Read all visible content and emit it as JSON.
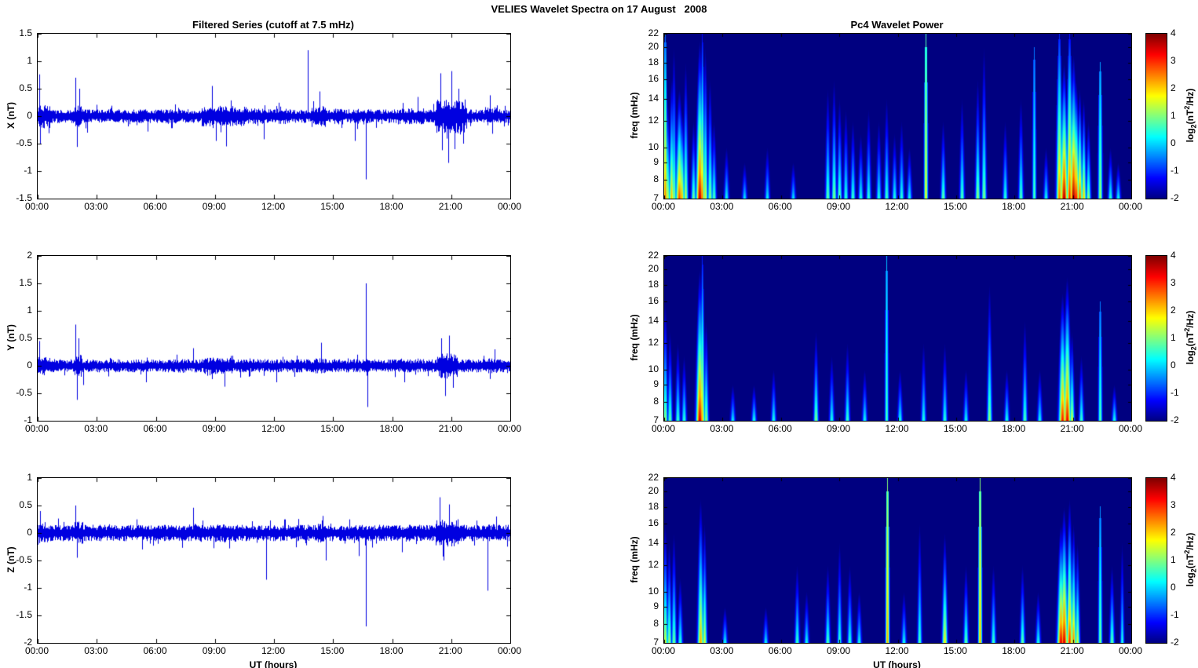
{
  "figure": {
    "title": "VELIES Wavelet Spectra on 17 August   2008"
  },
  "colors": {
    "line": "#0000e0",
    "frame": "#000000",
    "spectro_bg": "#000080",
    "text": "#000000"
  },
  "time_axis": {
    "tick_labels": [
      "00:00",
      "03:00",
      "06:00",
      "09:00",
      "12:00",
      "15:00",
      "18:00",
      "21:00",
      "00:00"
    ],
    "tick_hours": [
      0,
      3,
      6,
      9,
      12,
      15,
      18,
      21,
      24
    ],
    "xlim_hours": [
      0,
      24
    ]
  },
  "colorbar": {
    "clim": [
      -2,
      4
    ],
    "ticks": [
      4,
      3,
      2,
      1,
      0,
      -1,
      -2
    ],
    "tick_labels": [
      "4",
      "3",
      "2",
      "1",
      "0",
      "-1",
      "-2"
    ],
    "label_parts": {
      "p1": "log",
      "sub": "2",
      "p2": "(nT",
      "sup": "2",
      "p3": "/Hz)"
    }
  },
  "chart_data": [
    {
      "id": "x-filtered-series",
      "type": "line",
      "title": "Filtered Series (cutoff at 7.5 mHz)",
      "ylabel": "X (nT)",
      "ylim": [
        -1.5,
        1.5
      ],
      "yticks": [
        -1.5,
        -1,
        -0.5,
        0,
        0.5,
        1,
        1.5
      ],
      "ytick_labels": [
        "-1.5",
        "-1",
        "-0.5",
        "0",
        "0.5",
        "1",
        "1.5"
      ],
      "seed": 7,
      "noise_sigma": 0.05,
      "noise_bursts": [
        [
          0,
          0.6,
          0.09
        ],
        [
          1.85,
          2.2,
          0.08
        ],
        [
          8.3,
          10.6,
          0.075
        ],
        [
          10.6,
          12.6,
          0.058
        ],
        [
          13.9,
          14.6,
          0.08
        ],
        [
          15.0,
          15.6,
          0.06
        ],
        [
          16.0,
          16.5,
          0.058
        ],
        [
          18.2,
          19.6,
          0.06
        ],
        [
          20.2,
          21.8,
          0.125
        ],
        [
          22.8,
          23.4,
          0.068
        ]
      ],
      "spikes": [
        [
          0.07,
          0.76
        ],
        [
          0.1,
          -0.5
        ],
        [
          1.93,
          0.7
        ],
        [
          1.99,
          -0.56
        ],
        [
          2.1,
          0.5
        ],
        [
          2.5,
          -0.3
        ],
        [
          5.6,
          -0.28
        ],
        [
          8.85,
          0.55
        ],
        [
          9.05,
          -0.45
        ],
        [
          9.55,
          -0.55
        ],
        [
          11.5,
          -0.42
        ],
        [
          13.72,
          1.2
        ],
        [
          14.3,
          0.45
        ],
        [
          16.1,
          -0.45
        ],
        [
          16.68,
          -1.15
        ],
        [
          19.3,
          0.35
        ],
        [
          20.45,
          0.78
        ],
        [
          20.55,
          -0.62
        ],
        [
          20.85,
          -0.85
        ],
        [
          21.0,
          0.82
        ],
        [
          21.15,
          -0.6
        ],
        [
          21.35,
          0.5
        ],
        [
          21.6,
          -0.5
        ],
        [
          22.95,
          0.38
        ],
        [
          23.1,
          -0.32
        ]
      ]
    },
    {
      "id": "y-filtered-series",
      "type": "line",
      "ylabel": "Y (nT)",
      "ylim": [
        -1,
        2
      ],
      "yticks": [
        -1,
        -0.5,
        0,
        0.5,
        1,
        1.5,
        2
      ],
      "ytick_labels": [
        "-1",
        "-0.5",
        "0",
        "0.5",
        "1",
        "1.5",
        "2"
      ],
      "seed": 11,
      "noise_sigma": 0.048,
      "noise_bursts": [
        [
          0,
          0.45,
          0.07
        ],
        [
          1.85,
          2.25,
          0.08
        ],
        [
          8.4,
          9.9,
          0.06
        ],
        [
          14.0,
          14.6,
          0.055
        ],
        [
          20.3,
          21.3,
          0.09
        ],
        [
          22.8,
          23.4,
          0.055
        ]
      ],
      "spikes": [
        [
          0.07,
          0.45
        ],
        [
          1.93,
          0.75
        ],
        [
          2.0,
          -0.62
        ],
        [
          2.08,
          0.5
        ],
        [
          2.3,
          -0.35
        ],
        [
          5.5,
          -0.3
        ],
        [
          7.9,
          0.32
        ],
        [
          9.5,
          -0.38
        ],
        [
          12.1,
          -0.3
        ],
        [
          14.4,
          0.42
        ],
        [
          16.68,
          1.5
        ],
        [
          16.75,
          -0.75
        ],
        [
          18.6,
          -0.3
        ],
        [
          20.5,
          0.5
        ],
        [
          20.7,
          -0.55
        ],
        [
          20.9,
          0.55
        ],
        [
          21.1,
          -0.4
        ],
        [
          23.2,
          0.3
        ]
      ]
    },
    {
      "id": "z-filtered-series",
      "type": "line",
      "ylabel": "Z (nT)",
      "xlabel": "UT (hours)",
      "ylim": [
        -2,
        1
      ],
      "yticks": [
        -2,
        -1.5,
        -1,
        -0.5,
        0,
        0.5,
        1
      ],
      "ytick_labels": [
        "-2",
        "-1.5",
        "-1",
        "-0.5",
        "0",
        "0.5",
        "1"
      ],
      "seed": 13,
      "noise_sigma": 0.06,
      "noise_bursts": [
        [
          0,
          0.5,
          0.08
        ],
        [
          1.8,
          2.3,
          0.085
        ],
        [
          7.6,
          8.3,
          0.07
        ],
        [
          8.9,
          10.1,
          0.065
        ],
        [
          14.2,
          14.9,
          0.07
        ],
        [
          20.2,
          21.4,
          0.1
        ],
        [
          22.7,
          23.3,
          0.065
        ]
      ],
      "spikes": [
        [
          0.1,
          0.4
        ],
        [
          1.9,
          0.5
        ],
        [
          2.0,
          -0.45
        ],
        [
          5.3,
          -0.3
        ],
        [
          7.9,
          0.46
        ],
        [
          11.62,
          -0.85
        ],
        [
          14.62,
          -0.5
        ],
        [
          16.3,
          -0.42
        ],
        [
          16.66,
          -1.7
        ],
        [
          18.5,
          -0.35
        ],
        [
          20.4,
          0.65
        ],
        [
          20.6,
          -0.5
        ],
        [
          20.9,
          0.52
        ],
        [
          22.85,
          -1.05
        ],
        [
          23.3,
          0.3
        ]
      ]
    },
    {
      "id": "x-wavelet-power",
      "type": "heatmap",
      "title": "Pc4 Wavelet Power",
      "ylabel": "freq (mHz)",
      "ylim_mhz": [
        7,
        22
      ],
      "yscale": "log",
      "yticks": [
        7,
        8,
        9,
        10,
        12,
        14,
        16,
        18,
        20,
        22
      ],
      "ytick_labels": [
        "7",
        "8",
        "9",
        "10",
        "12",
        "14",
        "16",
        "18",
        "20",
        "22"
      ],
      "clim": [
        -2,
        4
      ],
      "streaks": [
        [
          0.05,
          2.6,
          22,
          2,
          0.7
        ],
        [
          0.15,
          1.6,
          14,
          2
        ],
        [
          0.35,
          2.2,
          16,
          2
        ],
        [
          0.5,
          1.2,
          20,
          2
        ],
        [
          0.75,
          2.9,
          15,
          3
        ],
        [
          0.9,
          2.4,
          13,
          2
        ],
        [
          1.1,
          1.4,
          18,
          2
        ],
        [
          1.5,
          1.0,
          12,
          2
        ],
        [
          1.8,
          3.7,
          21,
          3
        ],
        [
          1.95,
          2.6,
          22,
          2,
          0.85
        ],
        [
          2.1,
          1.6,
          20,
          2
        ],
        [
          2.35,
          1.2,
          16,
          2
        ],
        [
          2.55,
          0.8,
          12,
          2
        ],
        [
          3.2,
          0.4,
          10,
          2
        ],
        [
          4.1,
          0.2,
          9,
          2
        ],
        [
          5.3,
          0.3,
          10,
          2
        ],
        [
          6.6,
          0.2,
          9,
          2
        ],
        [
          8.4,
          0.9,
          15,
          2
        ],
        [
          8.7,
          1.1,
          16,
          2
        ],
        [
          9.0,
          0.9,
          14,
          2
        ],
        [
          9.3,
          0.6,
          13,
          2
        ],
        [
          9.7,
          0.7,
          12,
          2
        ],
        [
          10.1,
          0.5,
          11,
          2
        ],
        [
          10.5,
          0.6,
          13,
          2
        ],
        [
          11.0,
          0.5,
          12,
          2
        ],
        [
          11.4,
          0.7,
          14,
          2
        ],
        [
          11.8,
          0.5,
          11,
          2
        ],
        [
          12.2,
          0.6,
          12,
          2
        ],
        [
          12.6,
          0.4,
          10,
          2
        ],
        [
          13.45,
          1.8,
          22,
          1.6,
          0.3
        ],
        [
          14.3,
          0.9,
          12,
          2
        ],
        [
          15.3,
          0.8,
          14,
          2
        ],
        [
          16.1,
          1.2,
          16,
          2
        ],
        [
          16.4,
          1.1,
          20,
          2
        ],
        [
          17.5,
          0.6,
          12,
          2
        ],
        [
          18.3,
          0.8,
          14,
          2
        ],
        [
          19.0,
          0.8,
          20,
          1.6,
          0.5
        ],
        [
          19.6,
          0.4,
          10,
          2
        ],
        [
          20.3,
          2.6,
          22,
          2.5,
          0.8
        ],
        [
          20.55,
          3.8,
          18,
          3
        ],
        [
          20.8,
          3.1,
          22,
          2.5,
          0.85
        ],
        [
          21.0,
          3.9,
          19,
          3
        ],
        [
          21.15,
          3.3,
          16,
          3
        ],
        [
          21.35,
          2.9,
          15,
          2
        ],
        [
          21.55,
          2.1,
          14,
          2
        ],
        [
          21.8,
          1.2,
          12,
          2
        ],
        [
          22.4,
          1.3,
          18,
          1.8,
          0.5
        ],
        [
          22.9,
          0.6,
          10,
          2
        ],
        [
          23.3,
          0.4,
          9,
          2
        ]
      ]
    },
    {
      "id": "y-wavelet-power",
      "type": "heatmap",
      "ylabel": "freq (mHz)",
      "ylim_mhz": [
        7,
        22
      ],
      "yscale": "log",
      "yticks": [
        7,
        8,
        9,
        10,
        12,
        14,
        16,
        18,
        20,
        22
      ],
      "ytick_labels": [
        "7",
        "8",
        "9",
        "10",
        "12",
        "14",
        "16",
        "18",
        "20",
        "22"
      ],
      "clim": [
        -2,
        4
      ],
      "streaks": [
        [
          0.05,
          1.2,
          16,
          2
        ],
        [
          0.3,
          0.9,
          13,
          2
        ],
        [
          0.7,
          0.7,
          12,
          2
        ],
        [
          1.0,
          0.6,
          11,
          2
        ],
        [
          1.8,
          3.6,
          20,
          3
        ],
        [
          1.95,
          2.2,
          22,
          2,
          0.8
        ],
        [
          2.15,
          1.2,
          14,
          2
        ],
        [
          3.5,
          0.3,
          9,
          2
        ],
        [
          4.6,
          0.5,
          9,
          2
        ],
        [
          5.6,
          0.5,
          10,
          2
        ],
        [
          7.8,
          1.1,
          13,
          2
        ],
        [
          8.6,
          0.5,
          11,
          2
        ],
        [
          9.4,
          0.7,
          12,
          2
        ],
        [
          10.3,
          0.4,
          10,
          2
        ],
        [
          11.4,
          0.8,
          22,
          1.5,
          0.35
        ],
        [
          12.1,
          0.5,
          10,
          2
        ],
        [
          13.3,
          0.5,
          12,
          2
        ],
        [
          14.4,
          0.6,
          12,
          2
        ],
        [
          15.5,
          0.4,
          10,
          2
        ],
        [
          16.7,
          1.2,
          18,
          2
        ],
        [
          17.6,
          0.5,
          10,
          2
        ],
        [
          18.5,
          0.8,
          14,
          2
        ],
        [
          19.3,
          0.4,
          10,
          2
        ],
        [
          20.45,
          3.2,
          17,
          3
        ],
        [
          20.7,
          3.4,
          19,
          3
        ],
        [
          20.95,
          1.6,
          13,
          2
        ],
        [
          21.4,
          0.7,
          11,
          2
        ],
        [
          22.4,
          0.9,
          16,
          1.6,
          0.5
        ],
        [
          23.1,
          0.5,
          9,
          2
        ]
      ]
    },
    {
      "id": "z-wavelet-power",
      "type": "heatmap",
      "ylabel": "freq (mHz)",
      "xlabel": "UT (hours)",
      "ylim_mhz": [
        7,
        22
      ],
      "yscale": "log",
      "yticks": [
        7,
        8,
        9,
        10,
        12,
        14,
        16,
        18,
        20,
        22
      ],
      "ytick_labels": [
        "7",
        "8",
        "9",
        "10",
        "12",
        "14",
        "16",
        "18",
        "20",
        "22"
      ],
      "clim": [
        -2,
        4
      ],
      "streaks": [
        [
          0.05,
          1.6,
          16,
          2
        ],
        [
          0.25,
          1.3,
          14,
          2
        ],
        [
          0.5,
          1.0,
          15,
          2
        ],
        [
          0.8,
          0.6,
          11,
          2
        ],
        [
          1.85,
          2.3,
          19,
          2.5
        ],
        [
          2.05,
          1.6,
          16,
          2
        ],
        [
          3.1,
          0.4,
          9,
          2
        ],
        [
          5.2,
          0.3,
          9,
          2
        ],
        [
          6.8,
          0.7,
          12,
          2
        ],
        [
          7.3,
          0.4,
          10,
          2
        ],
        [
          8.4,
          0.8,
          12,
          2
        ],
        [
          9.0,
          0.7,
          14,
          1.8
        ],
        [
          9.5,
          0.6,
          12,
          2
        ],
        [
          10.0,
          0.4,
          10,
          2
        ],
        [
          11.45,
          2.3,
          22,
          1.6,
          0.3
        ],
        [
          12.3,
          0.4,
          10,
          2
        ],
        [
          13.1,
          0.8,
          16,
          1.8
        ],
        [
          14.4,
          1.9,
          15,
          2.2
        ],
        [
          15.5,
          0.9,
          12,
          2
        ],
        [
          16.2,
          2.3,
          22,
          1.6,
          0.3
        ],
        [
          16.9,
          0.7,
          12,
          2
        ],
        [
          18.4,
          0.9,
          12,
          2
        ],
        [
          19.2,
          0.5,
          10,
          2
        ],
        [
          20.35,
          3.5,
          16,
          3
        ],
        [
          20.55,
          3.6,
          18,
          3
        ],
        [
          20.8,
          3.1,
          19,
          2.5
        ],
        [
          21.0,
          2.6,
          16,
          2.2
        ],
        [
          21.2,
          1.6,
          14,
          2
        ],
        [
          22.4,
          1.1,
          18,
          1.6,
          0.5
        ],
        [
          23.0,
          0.9,
          12,
          2
        ],
        [
          23.5,
          0.5,
          14,
          1.6
        ]
      ]
    }
  ]
}
